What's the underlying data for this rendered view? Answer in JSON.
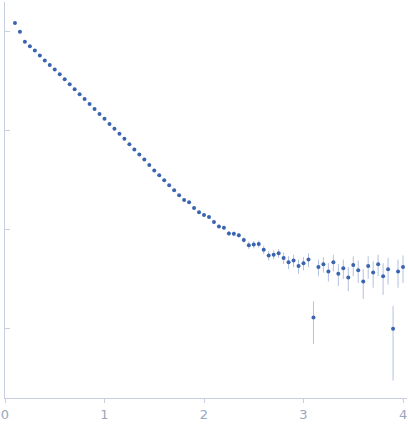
{
  "chart_data": {
    "type": "scatter",
    "x": [
      0.1,
      0.15,
      0.2,
      0.25,
      0.3,
      0.35,
      0.4,
      0.45,
      0.5,
      0.55,
      0.6,
      0.65,
      0.7,
      0.75,
      0.8,
      0.85,
      0.9,
      0.95,
      1.0,
      1.05,
      1.1,
      1.15,
      1.2,
      1.25,
      1.3,
      1.35,
      1.4,
      1.45,
      1.5,
      1.55,
      1.6,
      1.65,
      1.7,
      1.75,
      1.8,
      1.85,
      1.9,
      1.95,
      2.0,
      2.05,
      2.1,
      2.15,
      2.2,
      2.25,
      2.3,
      2.35,
      2.4,
      2.45,
      2.5,
      2.55,
      2.6,
      2.65,
      2.7,
      2.75,
      2.8,
      2.85,
      2.9,
      2.95,
      3.0,
      3.05,
      3.1,
      3.15,
      3.2,
      3.25,
      3.3,
      3.35,
      3.4,
      3.45,
      3.5,
      3.55,
      3.6,
      3.65,
      3.7,
      3.75,
      3.8,
      3.85,
      3.9,
      3.95,
      4.0
    ],
    "values": [
      1.23,
      1.0,
      0.794,
      0.716,
      0.646,
      0.575,
      0.513,
      0.462,
      0.417,
      0.372,
      0.331,
      0.295,
      0.263,
      0.234,
      0.209,
      0.186,
      0.166,
      0.148,
      0.132,
      0.117,
      0.105,
      0.0933,
      0.0832,
      0.0733,
      0.0646,
      0.0575,
      0.0513,
      0.0452,
      0.0398,
      0.0355,
      0.0316,
      0.0282,
      0.0251,
      0.0224,
      0.02,
      0.019,
      0.0166,
      0.015,
      0.0141,
      0.0135,
      0.012,
      0.0108,
      0.0105,
      0.0092,
      0.0091,
      0.0088,
      0.0079,
      0.007,
      0.0071,
      0.0072,
      0.0063,
      0.0055,
      0.0056,
      0.0058,
      0.0052,
      0.0047,
      0.0049,
      0.0043,
      0.0046,
      0.005,
      0.0013,
      0.0042,
      0.0045,
      0.0038,
      0.0047,
      0.0036,
      0.0041,
      0.0033,
      0.0044,
      0.0039,
      0.003,
      0.0043,
      0.0037,
      0.0045,
      0.0034,
      0.004,
      0.001,
      0.0038,
      0.0042
    ],
    "errors": [
      0.03,
      0.01,
      0.006,
      0.005,
      0.004,
      0.004,
      0.003,
      0.003,
      0.003,
      0.003,
      0.002,
      0.002,
      0.002,
      0.002,
      0.002,
      0.002,
      0.002,
      0.002,
      0.002,
      0.0015,
      0.0015,
      0.0015,
      0.0012,
      0.0012,
      0.001,
      0.001,
      0.001,
      0.0009,
      0.0008,
      0.0008,
      0.0007,
      0.0007,
      0.0006,
      0.0006,
      0.0006,
      0.0005,
      0.0005,
      0.0005,
      0.0005,
      0.0005,
      0.0005,
      0.0005,
      0.0005,
      0.0005,
      0.0005,
      0.0005,
      0.0005,
      0.0006,
      0.0006,
      0.0006,
      0.0006,
      0.0006,
      0.0006,
      0.0006,
      0.0007,
      0.0007,
      0.0007,
      0.0007,
      0.0007,
      0.0008,
      0.0006,
      0.0008,
      0.0008,
      0.0008,
      0.0009,
      0.0009,
      0.0009,
      0.0009,
      0.001,
      0.001,
      0.001,
      0.0011,
      0.0011,
      0.0011,
      0.0012,
      0.0012,
      0.0007,
      0.0012,
      0.0013
    ],
    "color": "#3a64b0",
    "log": "y",
    "grid": false,
    "tick_labels": "x",
    "xlim": [
      0,
      4.04
    ],
    "xticks": [
      0,
      1,
      2,
      3,
      4
    ],
    "ylim": [
      0.0002,
      2
    ],
    "yticks": [
      0.001,
      0.01,
      0.1,
      1
    ]
  }
}
